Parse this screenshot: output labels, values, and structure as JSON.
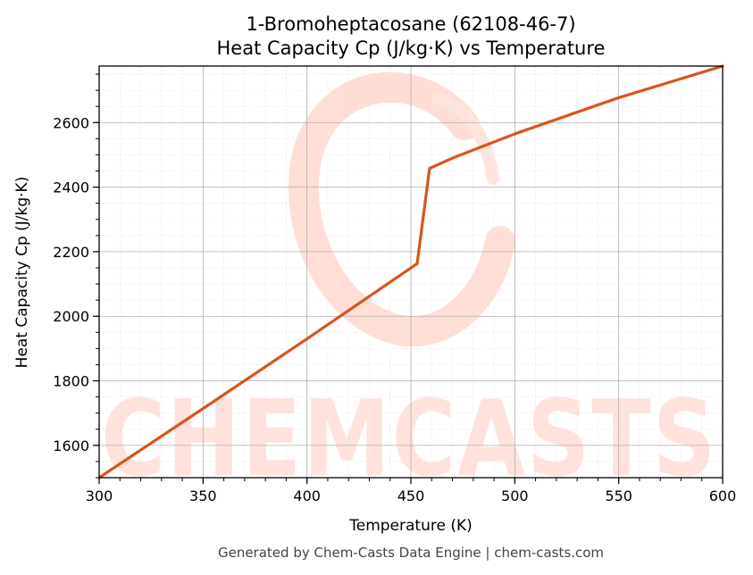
{
  "chart_data": {
    "type": "line",
    "title_line1": "1-Bromoheptacosane (62108-46-7)",
    "title_line2": "Heat Capacity Cp (J/kg·K) vs Temperature",
    "xlabel": "Temperature (K)",
    "ylabel": "Heat Capacity Cp (J/kg·K)",
    "xlim": [
      300,
      600
    ],
    "ylim": [
      1500,
      2775
    ],
    "x_ticks": [
      300,
      350,
      400,
      450,
      500,
      550,
      600
    ],
    "y_ticks": [
      1600,
      1800,
      2000,
      2200,
      2400,
      2600
    ],
    "grid": true,
    "series": [
      {
        "color": "#d9541e",
        "x": [
          300,
          350,
          400,
          453,
          459,
          470,
          500,
          550,
          600
        ],
        "y": [
          1500,
          1714,
          1930,
          2163,
          2458,
          2490,
          2565,
          2677,
          2775
        ]
      }
    ]
  },
  "watermark": {
    "text": "CHEMCASTS",
    "color": "#ffd9d0"
  },
  "footer": "Generated by Chem-Casts Data Engine | chem-casts.com"
}
